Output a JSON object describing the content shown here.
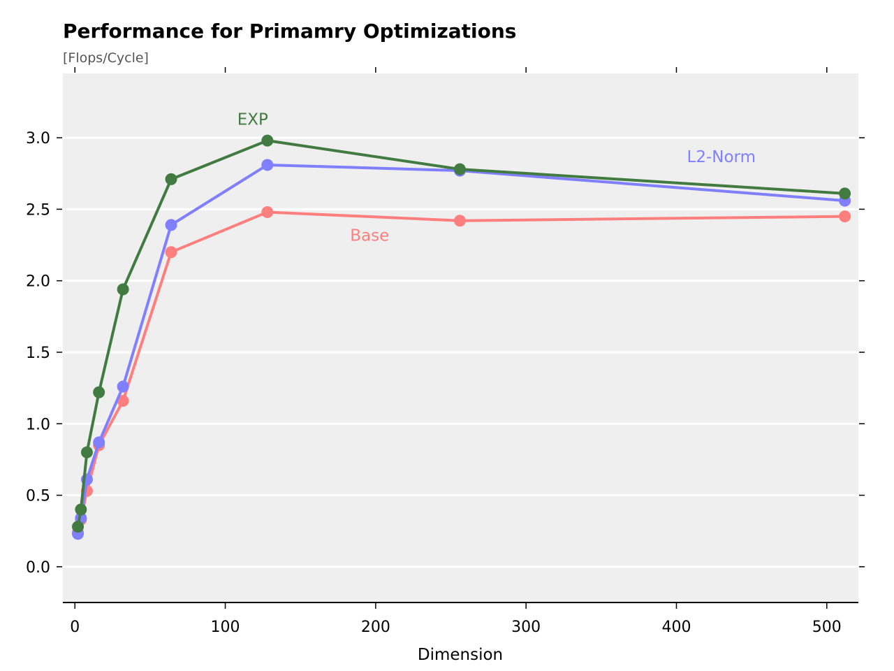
{
  "chart_data": {
    "type": "line",
    "title": "Performance for Primamry Optimizations",
    "subtitle": "[Flops/Cycle]",
    "xlabel": "Dimension",
    "ylabel": "",
    "xlim": [
      -8,
      521
    ],
    "ylim": [
      -0.25,
      3.45
    ],
    "xticks": [
      0,
      100,
      200,
      300,
      400,
      500
    ],
    "yticks": [
      0.0,
      0.5,
      1.0,
      1.5,
      2.0,
      2.5,
      3.0
    ],
    "xtick_labels": [
      "0",
      "100",
      "200",
      "300",
      "400",
      "500"
    ],
    "ytick_labels": [
      "0.0",
      "0.5",
      "1.0",
      "1.5",
      "2.0",
      "2.5",
      "3.0"
    ],
    "grid": "horizontal",
    "background": "#efefef",
    "x": [
      2,
      4,
      8,
      16,
      32,
      64,
      128,
      256,
      512
    ],
    "series": [
      {
        "name": "Base",
        "color": "#ff7f7f",
        "values": [
          0.24,
          0.33,
          0.53,
          0.85,
          1.16,
          2.2,
          2.48,
          2.42,
          2.45
        ],
        "label_pos": [
          183,
          2.28
        ]
      },
      {
        "name": "L2-Norm",
        "color": "#7f7fff",
        "values": [
          0.23,
          0.34,
          0.61,
          0.87,
          1.26,
          2.39,
          2.81,
          2.77,
          2.56
        ],
        "label_pos": [
          407,
          2.83
        ]
      },
      {
        "name": "EXP",
        "color": "#417b41",
        "values": [
          0.28,
          0.4,
          0.8,
          1.22,
          1.94,
          2.71,
          2.98,
          2.78,
          2.61
        ],
        "label_pos": [
          108,
          3.09
        ]
      }
    ]
  }
}
